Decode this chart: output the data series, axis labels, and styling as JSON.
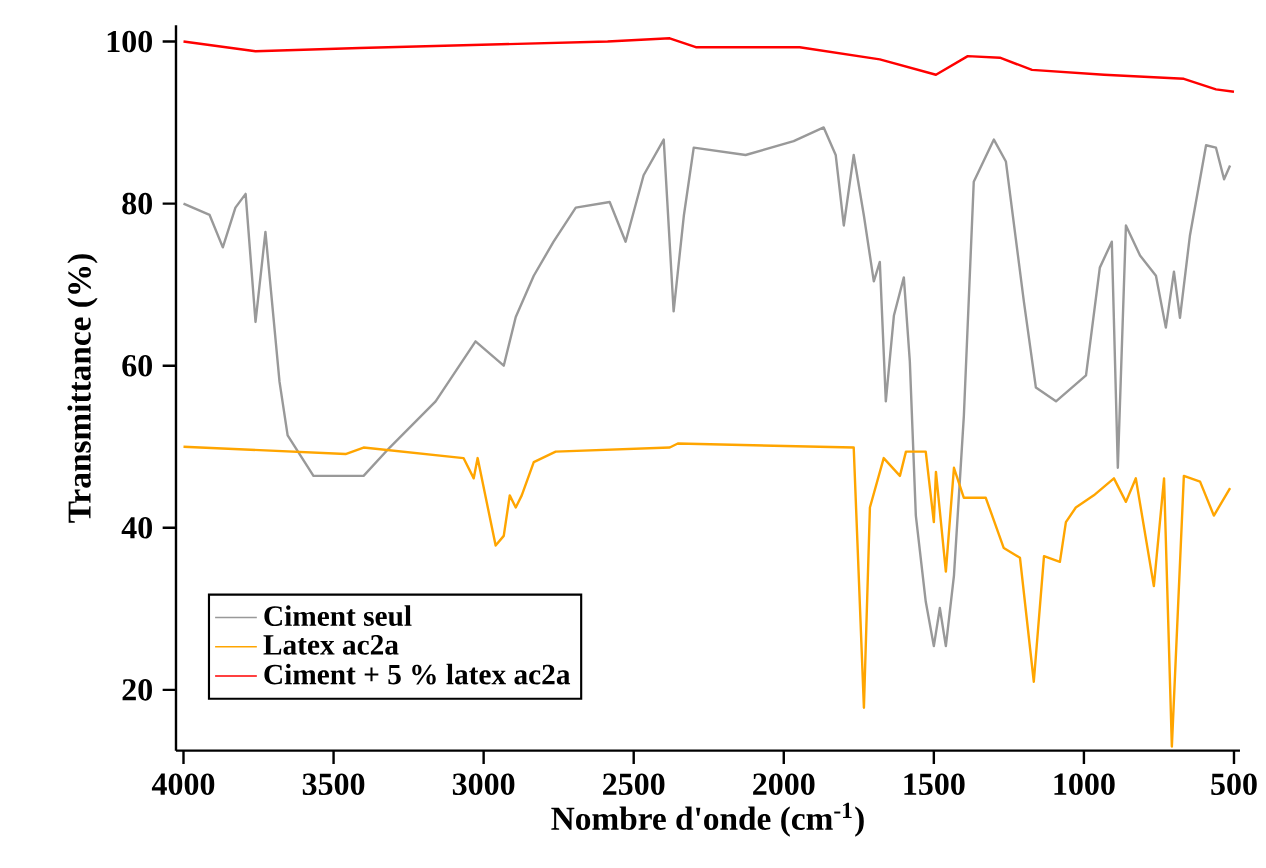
{
  "chart_data": {
    "type": "line",
    "xlabel": "Nombre d'onde (cm$^{-1}$)",
    "ylabel": "Transmittance (%)",
    "xlim": [
      4025,
      480
    ],
    "ylim": [
      12.5,
      102
    ],
    "xticks": [
      4000,
      3500,
      3000,
      2500,
      2000,
      1500,
      1000,
      500
    ],
    "yticks": [
      20,
      40,
      60,
      80,
      100
    ],
    "grid": false,
    "legend": "bottom left",
    "marker": "none",
    "line_style": "solid",
    "series": [
      {
        "name": "Ciment seul",
        "color": "#999999",
        "x": [
          4000,
          3913,
          3869,
          3827,
          3793,
          3760,
          3727,
          3680,
          3653,
          3567,
          3400,
          3313,
          3160,
          3027,
          2933,
          2893,
          2833,
          2767,
          2693,
          2580,
          2527,
          2467,
          2400,
          2367,
          2333,
          2300,
          2127,
          1967,
          1867,
          1827,
          1800,
          1767,
          1733,
          1700,
          1680,
          1660,
          1633,
          1600,
          1580,
          1560,
          1527,
          1500,
          1480,
          1460,
          1433,
          1400,
          1367,
          1300,
          1260,
          1200,
          1160,
          1093,
          993,
          947,
          907,
          887,
          860,
          813,
          760,
          727,
          700,
          680,
          647,
          593,
          560,
          533,
          513
        ],
        "values": [
          80,
          78.6,
          74.6,
          79.5,
          81.2,
          65.4,
          76.5,
          58,
          51.4,
          46.4,
          46.4,
          49.9,
          55.6,
          63,
          60,
          66,
          71.1,
          75.3,
          79.5,
          80.2,
          75.3,
          83.5,
          87.9,
          66.7,
          78.5,
          86.9,
          86,
          87.7,
          89.4,
          86,
          77.3,
          86,
          78.5,
          70.4,
          72.8,
          55.6,
          66.2,
          70.9,
          60.5,
          41.5,
          30.9,
          25.4,
          30.1,
          25.4,
          34.1,
          53.8,
          82.7,
          87.9,
          85.2,
          67.9,
          57.3,
          55.6,
          58.8,
          72.1,
          75.3,
          47.4,
          77.3,
          73.6,
          71.1,
          64.7,
          71.6,
          65.9,
          76,
          87.2,
          86.9,
          83,
          84.7
        ]
      },
      {
        "name": "Latex ac2a",
        "color": "#ffa500",
        "x": [
          4000,
          3460,
          3400,
          3067,
          3033,
          3020,
          2960,
          2933,
          2913,
          2893,
          2873,
          2833,
          2760,
          2380,
          2353,
          1767,
          1733,
          1713,
          1667,
          1613,
          1593,
          1527,
          1500,
          1493,
          1460,
          1433,
          1400,
          1327,
          1267,
          1213,
          1167,
          1133,
          1080,
          1060,
          1027,
          967,
          900,
          860,
          827,
          767,
          733,
          707,
          667,
          613,
          567,
          513
        ],
        "values": [
          50,
          49.1,
          49.9,
          48.6,
          46.1,
          48.6,
          37.8,
          39,
          44,
          42.5,
          44,
          48.1,
          49.4,
          49.9,
          50.4,
          49.9,
          17.8,
          42.5,
          48.6,
          46.4,
          49.4,
          49.4,
          40.7,
          46.9,
          34.6,
          47.4,
          43.7,
          43.7,
          37.5,
          36.3,
          21,
          36.5,
          35.8,
          40.7,
          42.5,
          44,
          46.1,
          43.2,
          46.1,
          32.8,
          46.1,
          13,
          46.4,
          45.7,
          41.5,
          44.9
        ]
      },
      {
        "name": "Ciment + 5 % latex ac2a",
        "color": "#ff0000",
        "x": [
          4000,
          3760,
          3413,
          2587,
          2380,
          2293,
          1947,
          1680,
          1493,
          1387,
          1280,
          1173,
          933,
          667,
          560,
          500
        ],
        "values": [
          100,
          98.8,
          99.2,
          100,
          100.4,
          99.3,
          99.3,
          97.8,
          95.9,
          98.2,
          98,
          96.5,
          95.9,
          95.4,
          94.1,
          93.8
        ]
      }
    ]
  }
}
